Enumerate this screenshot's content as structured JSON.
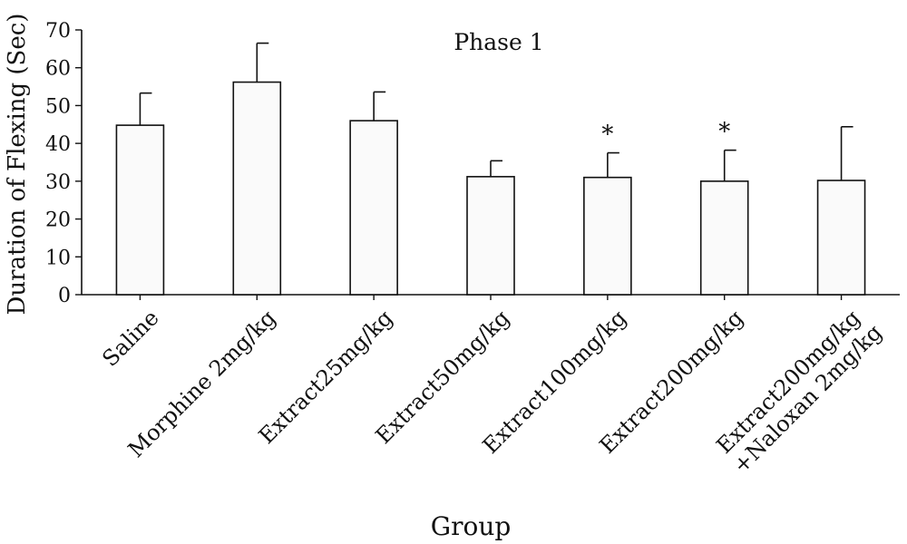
{
  "chart_data": {
    "type": "bar",
    "title": "Phase 1",
    "xlabel": "Group",
    "ylabel": "Duration of Flexing (Sec)",
    "ylim": [
      0,
      70
    ],
    "yticks": [
      0,
      10,
      20,
      30,
      40,
      50,
      60,
      70
    ],
    "grid": false,
    "bar_color": "#fafafa",
    "edge_color": "#111111",
    "categories": [
      [
        "Saline"
      ],
      [
        "Morphine 2mg/kg"
      ],
      [
        "Extract25mg/kg"
      ],
      [
        "Extract50mg/kg"
      ],
      [
        "Extract100mg/kg"
      ],
      [
        "Extract200mg/kg"
      ],
      [
        "Extract200mg/kg",
        "+Naloxan 2mg/kg"
      ]
    ],
    "values": [
      44.8,
      56.2,
      46.0,
      31.2,
      31.0,
      30.0,
      30.2
    ],
    "error_plus": [
      8.5,
      10.3,
      7.6,
      4.2,
      6.5,
      8.2,
      14.2
    ],
    "significance": [
      "",
      "",
      "",
      "",
      "*",
      "*",
      ""
    ]
  }
}
